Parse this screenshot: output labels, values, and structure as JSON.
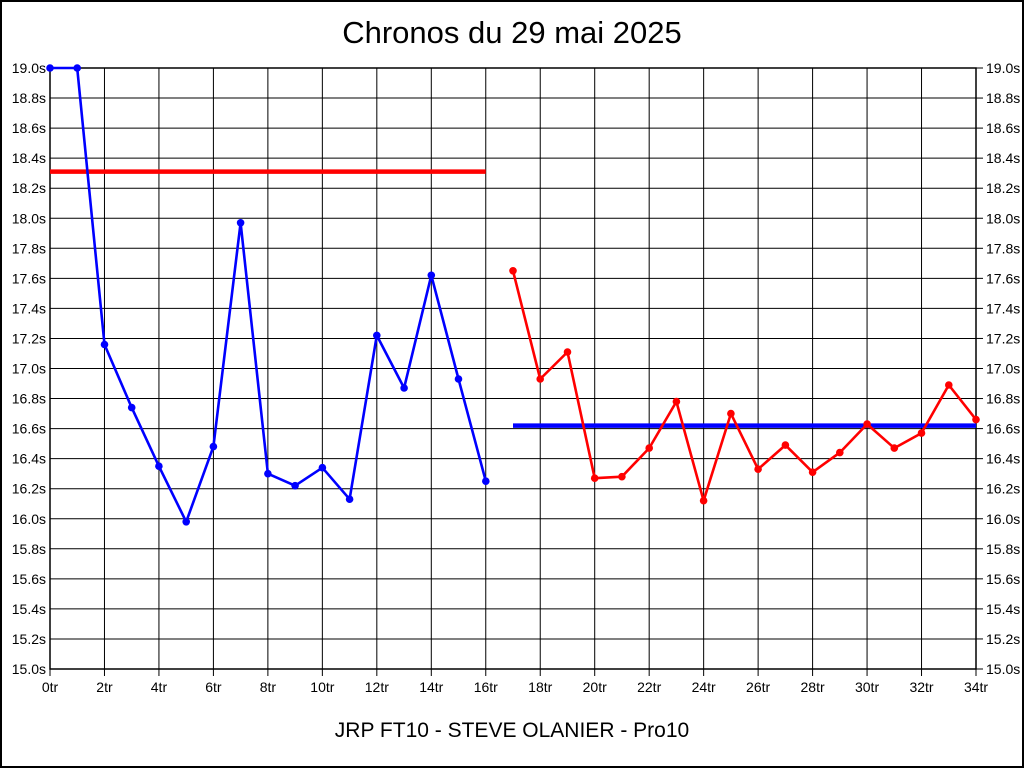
{
  "title": "Chronos du 29 mai 2025",
  "footer": "JRP FT10 - STEVE OLANIER - Pro10",
  "chart_data": {
    "type": "line",
    "title": "Chronos du 29 mai 2025",
    "bottom_label": "JRP FT10 - STEVE OLANIER - Pro10",
    "x_unit": "tr",
    "y_unit": "s",
    "xlim": [
      0,
      34
    ],
    "ylim": [
      15.0,
      19.0
    ],
    "grid": true,
    "x_ticks": [
      {
        "value": 0,
        "label": "0tr"
      },
      {
        "value": 2,
        "label": "2tr"
      },
      {
        "value": 4,
        "label": "4tr"
      },
      {
        "value": 6,
        "label": "6tr"
      },
      {
        "value": 8,
        "label": "8tr"
      },
      {
        "value": 10,
        "label": "10tr"
      },
      {
        "value": 12,
        "label": "12tr"
      },
      {
        "value": 14,
        "label": "14tr"
      },
      {
        "value": 16,
        "label": "16tr"
      },
      {
        "value": 18,
        "label": "18tr"
      },
      {
        "value": 20,
        "label": "20tr"
      },
      {
        "value": 22,
        "label": "22tr"
      },
      {
        "value": 24,
        "label": "24tr"
      },
      {
        "value": 26,
        "label": "26tr"
      },
      {
        "value": 28,
        "label": "28tr"
      },
      {
        "value": 30,
        "label": "30tr"
      },
      {
        "value": 32,
        "label": "32tr"
      },
      {
        "value": 34,
        "label": "34tr"
      }
    ],
    "y_ticks": [
      {
        "value": 15.0,
        "label": "15.0s"
      },
      {
        "value": 15.2,
        "label": "15.2s"
      },
      {
        "value": 15.4,
        "label": "15.4s"
      },
      {
        "value": 15.6,
        "label": "15.6s"
      },
      {
        "value": 15.8,
        "label": "15.8s"
      },
      {
        "value": 16.0,
        "label": "16.0s"
      },
      {
        "value": 16.2,
        "label": "16.2s"
      },
      {
        "value": 16.4,
        "label": "16.4s"
      },
      {
        "value": 16.6,
        "label": "16.6s"
      },
      {
        "value": 16.8,
        "label": "16.8s"
      },
      {
        "value": 17.0,
        "label": "17.0s"
      },
      {
        "value": 17.2,
        "label": "17.2s"
      },
      {
        "value": 17.4,
        "label": "17.4s"
      },
      {
        "value": 17.6,
        "label": "17.6s"
      },
      {
        "value": 17.8,
        "label": "17.8s"
      },
      {
        "value": 18.0,
        "label": "18.0s"
      },
      {
        "value": 18.2,
        "label": "18.2s"
      },
      {
        "value": 18.4,
        "label": "18.4s"
      },
      {
        "value": 18.6,
        "label": "18.6s"
      },
      {
        "value": 18.8,
        "label": "18.8s"
      },
      {
        "value": 19.0,
        "label": "19.0s"
      }
    ],
    "series": [
      {
        "name": "laps-blue",
        "color": "#0000ff",
        "x_start": 0,
        "values": [
          19.0,
          19.0,
          17.16,
          16.74,
          16.35,
          15.98,
          16.48,
          17.97,
          16.3,
          16.22,
          16.34,
          16.13,
          17.22,
          16.87,
          17.62,
          16.93,
          16.25
        ]
      },
      {
        "name": "laps-red",
        "color": "#ff0000",
        "x_start": 17,
        "values": [
          17.65,
          16.93,
          17.11,
          16.27,
          16.28,
          16.47,
          16.78,
          16.12,
          16.7,
          16.33,
          16.49,
          16.31,
          16.44,
          16.63,
          16.47,
          16.57,
          16.89,
          16.66
        ]
      }
    ],
    "reference_lines": [
      {
        "name": "mean-line-red",
        "color": "#ff0000",
        "y": 18.31,
        "x_from": 0,
        "x_to": 16
      },
      {
        "name": "mean-line-blue",
        "color": "#0000ff",
        "y": 16.62,
        "x_from": 17,
        "x_to": 34
      }
    ],
    "colors": {
      "axis": "#000000",
      "background": "#ffffff",
      "series_blue": "#0000ff",
      "series_red": "#ff0000"
    }
  }
}
